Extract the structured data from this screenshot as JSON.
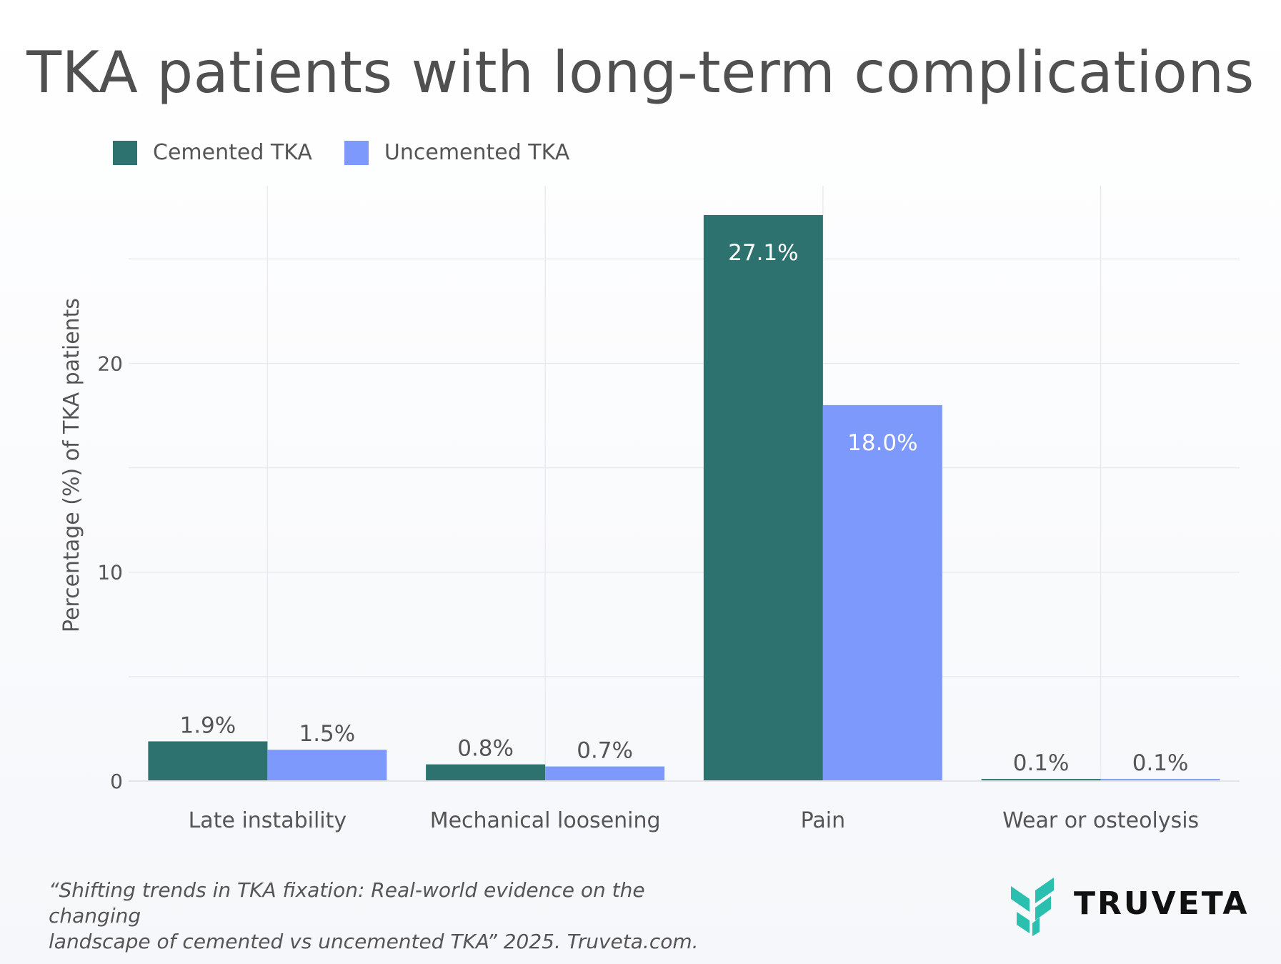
{
  "chart_data": {
    "type": "bar",
    "title": "TKA patients with long-term complications",
    "xlabel": "",
    "ylabel": "Percentage (%) of TKA patients",
    "ylim": [
      0,
      28.5
    ],
    "yticks": [
      0,
      10,
      20
    ],
    "grid": true,
    "legend_position": "top-left",
    "categories": [
      "Late instability",
      "Mechanical loosening",
      "Pain",
      "Wear or osteolysis"
    ],
    "series": [
      {
        "name": "Cemented TKA",
        "color": "#2e7270",
        "values": [
          1.9,
          0.8,
          27.1,
          0.1
        ],
        "labels": [
          "1.9%",
          "0.8%",
          "27.1%",
          "0.1%"
        ]
      },
      {
        "name": "Uncemented TKA",
        "color": "#7d99fc",
        "values": [
          1.5,
          0.7,
          18.0,
          0.1
        ],
        "labels": [
          "1.5%",
          "0.7%",
          "18.0%",
          "0.1%"
        ]
      }
    ]
  },
  "caption": {
    "line1": "“Shifting trends in TKA fixation: Real-world evidence on the changing",
    "line2": "landscape of cemented vs uncemented TKA” 2025. Truveta.com."
  },
  "logo": {
    "text": "TRUVETA",
    "color": "#2bbfb0"
  }
}
